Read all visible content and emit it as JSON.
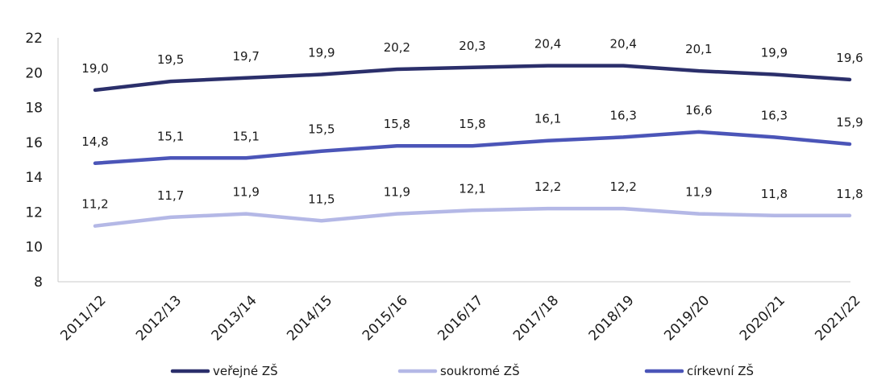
{
  "chart_data": {
    "type": "line",
    "title": "",
    "xlabel": "",
    "ylabel": "",
    "ylim": [
      8,
      22
    ],
    "yticks": [
      8,
      10,
      12,
      14,
      16,
      18,
      20,
      22
    ],
    "categories": [
      "2011/12",
      "2012/13",
      "2013/14",
      "2014/15",
      "2015/16",
      "2016/17",
      "2017/18",
      "2018/19",
      "2019/20",
      "2020/21",
      "2021/22"
    ],
    "series": [
      {
        "name": "veřejné ZŠ",
        "color": "#2b2f6b",
        "values": [
          19.0,
          19.5,
          19.7,
          19.9,
          20.2,
          20.3,
          20.4,
          20.4,
          20.1,
          19.9,
          19.6
        ],
        "labels": [
          "19,0",
          "19,5",
          "19,7",
          "19,9",
          "20,2",
          "20,3",
          "20,4",
          "20,4",
          "20,1",
          "19,9",
          "19,6"
        ]
      },
      {
        "name": "soukromé ZŠ",
        "color": "#b4b8e6",
        "values": [
          11.2,
          11.7,
          11.9,
          11.5,
          11.9,
          12.1,
          12.2,
          12.2,
          11.9,
          11.8,
          11.8
        ],
        "labels": [
          "11,2",
          "11,7",
          "11,9",
          "11,5",
          "11,9",
          "12,1",
          "12,2",
          "12,2",
          "11,9",
          "11,8",
          "11,8"
        ]
      },
      {
        "name": "církevní ZŠ",
        "color": "#4b55b8",
        "values": [
          14.8,
          15.1,
          15.1,
          15.5,
          15.8,
          15.8,
          16.1,
          16.3,
          16.6,
          16.3,
          15.9
        ],
        "labels": [
          "14,8",
          "15,1",
          "15,1",
          "15,5",
          "15,8",
          "15,8",
          "16,1",
          "16,3",
          "16,6",
          "16,3",
          "15,9"
        ]
      }
    ],
    "legend_position": "bottom",
    "grid": false
  }
}
